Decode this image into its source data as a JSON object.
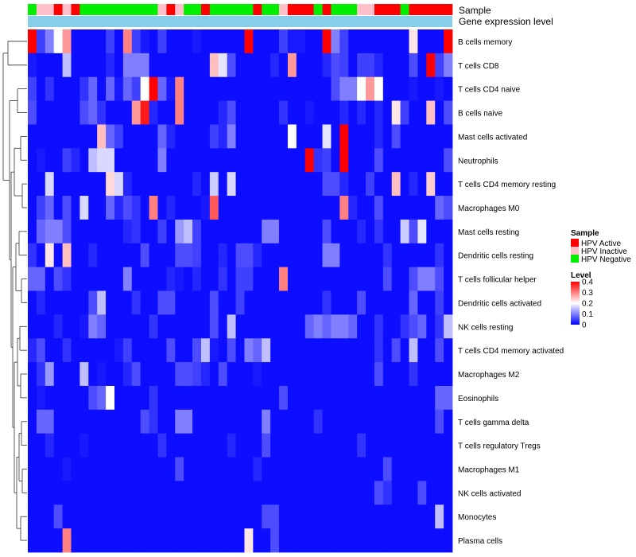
{
  "chart_data": {
    "type": "heatmap",
    "annotation_labels": {
      "sample": "Sample",
      "gene_expression": "Gene expression level"
    },
    "rows": [
      "B cells memory",
      "T cells CD8",
      "T cells CD4 naive",
      "B cells naive",
      "Mast cells activated",
      "Neutrophils",
      "T cells CD4 memory resting",
      "Macrophages M0",
      "Mast cells resting",
      "Dendritic cells resting",
      "T cells follicular helper",
      "Dendritic cells activated",
      "NK cells resting",
      "T cells CD4 memory activated",
      "Macrophages M2",
      "Eosinophils",
      "T cells gamma delta",
      "T cells regulatory  Tregs",
      "Macrophages M1",
      "NK cells activated",
      "Monocytes",
      "Plasma cells"
    ],
    "sample_groups": [
      "HPV Negative",
      "HPV Inactive",
      "HPV Inactive",
      "HPV Active",
      "HPV Inactive",
      "HPV Active",
      "HPV Negative",
      "HPV Negative",
      "HPV Negative",
      "HPV Negative",
      "HPV Negative",
      "HPV Negative",
      "HPV Negative",
      "HPV Negative",
      "HPV Negative",
      "HPV Inactive",
      "HPV Active",
      "HPV Inactive",
      "HPV Negative",
      "HPV Negative",
      "HPV Active",
      "HPV Negative",
      "HPV Negative",
      "HPV Negative",
      "HPV Negative",
      "HPV Negative",
      "HPV Active",
      "HPV Negative",
      "HPV Negative",
      "HPV Inactive",
      "HPV Active",
      "HPV Active",
      "HPV Active",
      "HPV Negative",
      "HPV Active",
      "HPV Negative",
      "HPV Negative",
      "HPV Negative",
      "HPV Inactive",
      "HPV Inactive",
      "HPV Active",
      "HPV Active",
      "HPV Active",
      "HPV Negative",
      "HPV Active",
      "HPV Active",
      "HPV Active",
      "HPV Active",
      "HPV Active"
    ],
    "values": [
      [
        0.4,
        0.05,
        0.1,
        0.2,
        0.28,
        0.01,
        0.01,
        0.01,
        0.01,
        0.05,
        0.01,
        0.3,
        0.05,
        0.02,
        0.01,
        0.05,
        0.01,
        0.01,
        0.01,
        0.02,
        0.01,
        0.01,
        0.01,
        0.01,
        0.01,
        0.4,
        0.01,
        0.01,
        0.01,
        0.05,
        0.02,
        0.02,
        0.01,
        0.01,
        0.4,
        0.1,
        0.05,
        0.01,
        0.01,
        0.01,
        0.01,
        0.01,
        0.01,
        0.01,
        0.22,
        0.01,
        0.01,
        0.01,
        0.4
      ],
      [
        0.02,
        0.01,
        0.01,
        0.01,
        0.15,
        0.01,
        0.01,
        0.01,
        0.01,
        0.03,
        0.01,
        0.1,
        0.1,
        0.1,
        0.01,
        0.01,
        0.01,
        0.01,
        0.01,
        0.01,
        0.01,
        0.25,
        0.18,
        0.06,
        0.01,
        0.01,
        0.01,
        0.01,
        0.03,
        0.01,
        0.28,
        0.01,
        0.01,
        0.01,
        0.03,
        0.06,
        0.05,
        0.01,
        0.05,
        0.05,
        0.03,
        0.01,
        0.01,
        0.01,
        0.06,
        0.01,
        0.4,
        0.05,
        0.1
      ],
      [
        0.05,
        0.01,
        0.04,
        0.01,
        0.01,
        0.01,
        0.04,
        0.08,
        0.01,
        0.08,
        0.02,
        0.08,
        0.05,
        0.2,
        0.4,
        0.08,
        0.02,
        0.3,
        0.01,
        0.01,
        0.01,
        0.01,
        0.01,
        0.01,
        0.01,
        0.01,
        0.01,
        0.01,
        0.01,
        0.01,
        0.01,
        0.01,
        0.01,
        0.01,
        0.01,
        0.06,
        0.1,
        0.1,
        0.2,
        0.28,
        0.2,
        0.01,
        0.01,
        0.01,
        0.02,
        0.01,
        0.01,
        0.02,
        0.01
      ],
      [
        0.06,
        0.01,
        0.01,
        0.01,
        0.01,
        0.01,
        0.06,
        0.08,
        0.04,
        0.01,
        0.01,
        0.01,
        0.28,
        0.38,
        0.03,
        0.01,
        0.01,
        0.3,
        0.01,
        0.01,
        0.01,
        0.01,
        0.03,
        0.06,
        0.01,
        0.01,
        0.01,
        0.01,
        0.01,
        0.04,
        0.01,
        0.01,
        0.02,
        0.01,
        0.01,
        0.01,
        0.03,
        0.01,
        0.03,
        0.01,
        0.03,
        0.01,
        0.22,
        0.05,
        0.01,
        0.01,
        0.25,
        0.01,
        0.06
      ],
      [
        0.01,
        0.01,
        0.01,
        0.01,
        0.01,
        0.01,
        0.01,
        0.01,
        0.25,
        0.08,
        0.05,
        0.01,
        0.01,
        0.01,
        0.01,
        0.08,
        0.03,
        0.01,
        0.01,
        0.01,
        0.01,
        0.05,
        0.03,
        0.1,
        0.01,
        0.01,
        0.01,
        0.01,
        0.01,
        0.01,
        0.2,
        0.01,
        0.01,
        0.01,
        0.18,
        0.01,
        0.4,
        0.01,
        0.01,
        0.01,
        0.03,
        0.01,
        0.06,
        0.01,
        0.01,
        0.01,
        0.01,
        0.01,
        0.01
      ],
      [
        0.01,
        0.02,
        0.01,
        0.01,
        0.05,
        0.03,
        0.01,
        0.15,
        0.17,
        0.17,
        0.01,
        0.01,
        0.01,
        0.01,
        0.01,
        0.1,
        0.01,
        0.01,
        0.01,
        0.01,
        0.01,
        0.01,
        0.01,
        0.01,
        0.01,
        0.01,
        0.01,
        0.01,
        0.01,
        0.01,
        0.01,
        0.01,
        0.4,
        0.04,
        0.05,
        0.01,
        0.4,
        0.01,
        0.01,
        0.01,
        0.06,
        0.01,
        0.01,
        0.01,
        0.01,
        0.01,
        0.01,
        0.01,
        0.06
      ],
      [
        0.01,
        0.01,
        0.17,
        0.01,
        0.01,
        0.01,
        0.01,
        0.01,
        0.01,
        0.23,
        0.17,
        0.03,
        0.01,
        0.01,
        0.01,
        0.01,
        0.01,
        0.01,
        0.01,
        0.03,
        0.01,
        0.16,
        0.01,
        0.17,
        0.01,
        0.01,
        0.01,
        0.01,
        0.01,
        0.01,
        0.01,
        0.01,
        0.01,
        0.01,
        0.06,
        0.06,
        0.03,
        0.01,
        0.01,
        0.05,
        0.01,
        0.01,
        0.25,
        0.01,
        0.03,
        0.01,
        0.24,
        0.01,
        0.01
      ],
      [
        0.01,
        0.05,
        0.08,
        0.01,
        0.06,
        0.01,
        0.17,
        0.01,
        0.01,
        0.08,
        0.03,
        0.06,
        0.04,
        0.01,
        0.3,
        0.01,
        0.03,
        0.01,
        0.01,
        0.01,
        0.02,
        0.33,
        0.01,
        0.01,
        0.01,
        0.01,
        0.01,
        0.01,
        0.01,
        0.01,
        0.01,
        0.01,
        0.01,
        0.01,
        0.01,
        0.01,
        0.3,
        0.03,
        0.01,
        0.01,
        0.06,
        0.01,
        0.01,
        0.01,
        0.01,
        0.01,
        0.01,
        0.08,
        0.06
      ],
      [
        0.01,
        0.08,
        0.1,
        0.1,
        0.06,
        0.01,
        0.01,
        0.01,
        0.01,
        0.01,
        0.01,
        0.03,
        0.04,
        0.01,
        0.01,
        0.05,
        0.01,
        0.12,
        0.15,
        0.05,
        0.01,
        0.01,
        0.01,
        0.01,
        0.01,
        0.01,
        0.01,
        0.1,
        0.1,
        0.01,
        0.01,
        0.01,
        0.01,
        0.01,
        0.06,
        0.01,
        0.01,
        0.01,
        0.03,
        0.01,
        0.04,
        0.01,
        0.01,
        0.16,
        0.06,
        0.18,
        0.01,
        0.01,
        0.01
      ],
      [
        0.04,
        0.01,
        0.22,
        0.01,
        0.25,
        0.01,
        0.01,
        0.03,
        0.01,
        0.01,
        0.01,
        0.01,
        0.01,
        0.06,
        0.01,
        0.01,
        0.01,
        0.06,
        0.06,
        0.05,
        0.01,
        0.01,
        0.03,
        0.01,
        0.06,
        0.06,
        0.03,
        0.01,
        0.01,
        0.01,
        0.01,
        0.01,
        0.01,
        0.01,
        0.1,
        0.1,
        0.01,
        0.01,
        0.01,
        0.01,
        0.01,
        0.04,
        0.01,
        0.01,
        0.01,
        0.01,
        0.01,
        0.04,
        0.01
      ],
      [
        0.08,
        0.08,
        0.01,
        0.06,
        0.04,
        0.01,
        0.01,
        0.01,
        0.01,
        0.01,
        0.01,
        0.1,
        0.01,
        0.01,
        0.01,
        0.01,
        0.03,
        0.02,
        0.01,
        0.03,
        0.01,
        0.01,
        0.04,
        0.01,
        0.05,
        0.05,
        0.01,
        0.01,
        0.01,
        0.3,
        0.01,
        0.01,
        0.01,
        0.01,
        0.01,
        0.01,
        0.01,
        0.01,
        0.01,
        0.01,
        0.01,
        0.06,
        0.01,
        0.01,
        0.06,
        0.1,
        0.1,
        0.06,
        0.01
      ],
      [
        0.01,
        0.03,
        0.01,
        0.01,
        0.01,
        0.01,
        0.01,
        0.06,
        0.15,
        0.01,
        0.01,
        0.01,
        0.04,
        0.01,
        0.01,
        0.06,
        0.06,
        0.01,
        0.01,
        0.01,
        0.01,
        0.06,
        0.01,
        0.01,
        0.05,
        0.01,
        0.01,
        0.01,
        0.01,
        0.01,
        0.01,
        0.01,
        0.01,
        0.01,
        0.04,
        0.01,
        0.01,
        0.01,
        0.06,
        0.01,
        0.01,
        0.01,
        0.01,
        0.01,
        0.08,
        0.01,
        0.01,
        0.05,
        0.01
      ],
      [
        0.01,
        0.01,
        0.01,
        0.03,
        0.01,
        0.01,
        0.02,
        0.1,
        0.08,
        0.01,
        0.01,
        0.01,
        0.01,
        0.01,
        0.04,
        0.01,
        0.01,
        0.01,
        0.01,
        0.01,
        0.01,
        0.06,
        0.01,
        0.15,
        0.01,
        0.01,
        0.01,
        0.01,
        0.01,
        0.01,
        0.01,
        0.01,
        0.08,
        0.1,
        0.08,
        0.1,
        0.1,
        0.08,
        0.01,
        0.01,
        0.04,
        0.01,
        0.01,
        0.04,
        0.06,
        0.08,
        0.01,
        0.04,
        0.15
      ],
      [
        0.03,
        0.06,
        0.01,
        0.01,
        0.04,
        0.01,
        0.01,
        0.01,
        0.01,
        0.01,
        0.02,
        0.05,
        0.01,
        0.01,
        0.01,
        0.01,
        0.06,
        0.01,
        0.01,
        0.06,
        0.15,
        0.02,
        0.01,
        0.06,
        0.01,
        0.1,
        0.08,
        0.15,
        0.01,
        0.01,
        0.01,
        0.01,
        0.01,
        0.01,
        0.01,
        0.01,
        0.01,
        0.01,
        0.01,
        0.01,
        0.04,
        0.01,
        0.06,
        0.01,
        0.15,
        0.01,
        0.01,
        0.06,
        0.01
      ],
      [
        0.01,
        0.04,
        0.12,
        0.01,
        0.01,
        0.01,
        0.15,
        0.01,
        0.02,
        0.01,
        0.01,
        0.03,
        0.06,
        0.01,
        0.01,
        0.01,
        0.01,
        0.06,
        0.06,
        0.05,
        0.03,
        0.01,
        0.06,
        0.01,
        0.01,
        0.01,
        0.02,
        0.01,
        0.01,
        0.01,
        0.01,
        0.01,
        0.01,
        0.01,
        0.01,
        0.01,
        0.01,
        0.01,
        0.01,
        0.01,
        0.06,
        0.01,
        0.01,
        0.01,
        0.04,
        0.01,
        0.01,
        0.01,
        0.01
      ],
      [
        0.01,
        0.02,
        0.01,
        0.01,
        0.01,
        0.01,
        0.01,
        0.06,
        0.08,
        0.2,
        0.01,
        0.01,
        0.01,
        0.01,
        0.04,
        0.01,
        0.01,
        0.01,
        0.01,
        0.01,
        0.01,
        0.01,
        0.01,
        0.01,
        0.01,
        0.01,
        0.01,
        0.01,
        0.01,
        0.06,
        0.01,
        0.01,
        0.01,
        0.01,
        0.01,
        0.01,
        0.01,
        0.01,
        0.01,
        0.01,
        0.01,
        0.01,
        0.01,
        0.01,
        0.01,
        0.01,
        0.01,
        0.08,
        0.08
      ],
      [
        0.01,
        0.08,
        0.08,
        0.01,
        0.01,
        0.01,
        0.01,
        0.01,
        0.01,
        0.01,
        0.01,
        0.01,
        0.01,
        0.06,
        0.04,
        0.01,
        0.01,
        0.1,
        0.1,
        0.01,
        0.01,
        0.01,
        0.01,
        0.01,
        0.01,
        0.01,
        0.01,
        0.1,
        0.01,
        0.01,
        0.01,
        0.01,
        0.01,
        0.04,
        0.01,
        0.01,
        0.01,
        0.01,
        0.01,
        0.01,
        0.01,
        0.01,
        0.01,
        0.01,
        0.01,
        0.01,
        0.01,
        0.06,
        0.01
      ],
      [
        0.01,
        0.01,
        0.03,
        0.01,
        0.01,
        0.01,
        0.02,
        0.01,
        0.01,
        0.01,
        0.01,
        0.01,
        0.01,
        0.01,
        0.01,
        0.04,
        0.01,
        0.01,
        0.01,
        0.01,
        0.01,
        0.01,
        0.01,
        0.03,
        0.01,
        0.01,
        0.01,
        0.06,
        0.01,
        0.01,
        0.01,
        0.01,
        0.01,
        0.01,
        0.01,
        0.01,
        0.01,
        0.01,
        0.04,
        0.01,
        0.01,
        0.01,
        0.01,
        0.01,
        0.01,
        0.01,
        0.01,
        0.01,
        0.01
      ],
      [
        0.01,
        0.01,
        0.01,
        0.01,
        0.02,
        0.01,
        0.01,
        0.01,
        0.01,
        0.01,
        0.01,
        0.01,
        0.01,
        0.01,
        0.01,
        0.01,
        0.01,
        0.06,
        0.01,
        0.01,
        0.01,
        0.01,
        0.01,
        0.01,
        0.01,
        0.01,
        0.03,
        0.01,
        0.01,
        0.01,
        0.01,
        0.01,
        0.01,
        0.01,
        0.01,
        0.01,
        0.01,
        0.01,
        0.01,
        0.01,
        0.01,
        0.06,
        0.01,
        0.01,
        0.01,
        0.01,
        0.01,
        0.01,
        0.01
      ],
      [
        0.01,
        0.01,
        0.01,
        0.01,
        0.01,
        0.01,
        0.01,
        0.01,
        0.01,
        0.01,
        0.01,
        0.01,
        0.01,
        0.01,
        0.01,
        0.01,
        0.01,
        0.01,
        0.01,
        0.01,
        0.01,
        0.01,
        0.01,
        0.01,
        0.01,
        0.01,
        0.01,
        0.01,
        0.01,
        0.01,
        0.01,
        0.01,
        0.01,
        0.01,
        0.01,
        0.01,
        0.01,
        0.01,
        0.01,
        0.01,
        0.06,
        0.04,
        0.01,
        0.01,
        0.01,
        0.06,
        0.01,
        0.01,
        0.01
      ],
      [
        0.01,
        0.01,
        0.01,
        0.06,
        0.01,
        0.01,
        0.01,
        0.01,
        0.01,
        0.01,
        0.01,
        0.01,
        0.01,
        0.01,
        0.01,
        0.01,
        0.01,
        0.01,
        0.01,
        0.01,
        0.01,
        0.01,
        0.01,
        0.01,
        0.01,
        0.01,
        0.01,
        0.06,
        0.06,
        0.01,
        0.01,
        0.01,
        0.01,
        0.01,
        0.01,
        0.01,
        0.01,
        0.01,
        0.01,
        0.01,
        0.01,
        0.01,
        0.01,
        0.01,
        0.01,
        0.01,
        0.01,
        0.15,
        0.01
      ],
      [
        0.01,
        0.01,
        0.01,
        0.01,
        0.3,
        0.01,
        0.01,
        0.01,
        0.01,
        0.01,
        0.01,
        0.01,
        0.01,
        0.01,
        0.01,
        0.01,
        0.01,
        0.01,
        0.01,
        0.01,
        0.01,
        0.01,
        0.01,
        0.01,
        0.01,
        0.22,
        0.01,
        0.01,
        0.06,
        0.01,
        0.01,
        0.01,
        0.01,
        0.01,
        0.01,
        0.01,
        0.01,
        0.01,
        0.01,
        0.01,
        0.01,
        0.01,
        0.01,
        0.01,
        0.01,
        0.01,
        0.01,
        0.01,
        0.01
      ]
    ],
    "legend": {
      "sample_title": "Sample",
      "sample_entries": [
        {
          "label": "HPV Active",
          "color": "#ff0000"
        },
        {
          "label": "HPV Inactive",
          "color": "#ffc0cb"
        },
        {
          "label": "HPV Negative",
          "color": "#00ee00"
        }
      ],
      "level_title": "Level",
      "level_ticks": [
        "0.4",
        "0.3",
        "0.2",
        "0.1",
        "0"
      ],
      "level_tick_values": [
        0.4,
        0.3,
        0.2,
        0.1,
        0
      ],
      "range": [
        0,
        0.4
      ]
    },
    "colors": {
      "low": "#0000ff",
      "mid": "#ffffff",
      "high": "#ff0000",
      "gene_expression_bar": "#87ceeb"
    }
  }
}
